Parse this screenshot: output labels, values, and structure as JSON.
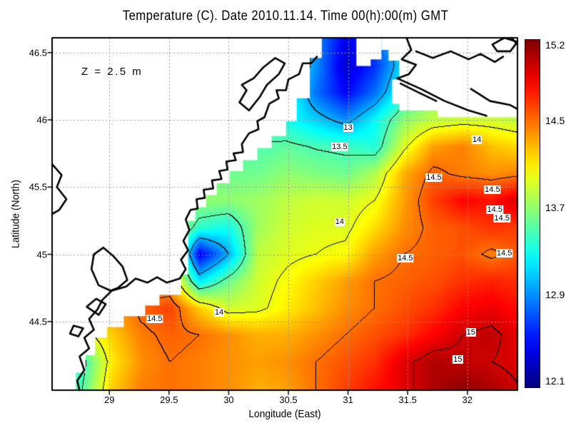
{
  "title": "Temperature (C). Date 2010.11.14. Time 00(h):00(m) GMT",
  "annotation": "Z = 2.5 m",
  "axes": {
    "x": {
      "label": "Longitude (East)",
      "ticks": [
        {
          "value": 29,
          "label": "29"
        },
        {
          "value": 29.5,
          "label": "29.5"
        },
        {
          "value": 30,
          "label": "30"
        },
        {
          "value": 30.5,
          "label": "30.5"
        },
        {
          "value": 31,
          "label": "31"
        },
        {
          "value": 31.5,
          "label": "31.5"
        },
        {
          "value": 32,
          "label": "32"
        }
      ]
    },
    "y": {
      "label": "Latitude (North)",
      "ticks": [
        {
          "value": 46.5,
          "label": "46.5"
        },
        {
          "value": 46,
          "label": "46"
        },
        {
          "value": 45.5,
          "label": "45.5"
        },
        {
          "value": 45,
          "label": "45"
        },
        {
          "value": 44.5,
          "label": "44.5"
        }
      ]
    }
  },
  "colorbar": {
    "range": [
      12.05,
      15.25
    ],
    "ticks": [
      {
        "value": 15.2,
        "label": "15.2"
      },
      {
        "value": 14.5,
        "label": "14.5"
      },
      {
        "value": 13.7,
        "label": "13.7"
      },
      {
        "value": 12.9,
        "label": "12.9"
      },
      {
        "value": 12.1,
        "label": "12.1"
      }
    ]
  },
  "chart_data": {
    "type": "heatmap",
    "title": "Temperature (C). Date 2010.11.14. Time 00(h):00(m) GMT",
    "xlabel": "Longitude (East)",
    "ylabel": "Latitude (North)",
    "lon_range": [
      28.52,
      32.42
    ],
    "lat_range": [
      43.99,
      46.61
    ],
    "value_range": [
      12.05,
      15.25
    ],
    "grid": {
      "lons": [
        28.53,
        28.775,
        29.02,
        29.265,
        29.51,
        29.755,
        30.0,
        30.245,
        30.49,
        30.735,
        30.98,
        31.225,
        31.47,
        31.715,
        31.96,
        32.205,
        32.45
      ],
      "lats": [
        46.6,
        46.4,
        46.2,
        46.0,
        45.8,
        45.6,
        45.4,
        45.2,
        45.0,
        44.8,
        44.6,
        44.4,
        44.2,
        44.0
      ],
      "values": [
        [
          13.5,
          13.5,
          13.5,
          13.5,
          13.5,
          13.5,
          13.5,
          13.5,
          13.4,
          12.9,
          12.4,
          12.7,
          13.2,
          13.8,
          13.8,
          13.8,
          13.8
        ],
        [
          13.5,
          13.5,
          13.5,
          13.5,
          13.5,
          13.5,
          13.5,
          13.5,
          13.4,
          12.9,
          12.3,
          12.6,
          13.2,
          13.8,
          13.8,
          13.8,
          13.8
        ],
        [
          13.5,
          13.5,
          13.5,
          13.5,
          13.5,
          13.5,
          13.5,
          13.5,
          13.35,
          12.8,
          12.45,
          12.8,
          13.35,
          13.7,
          13.8,
          13.8,
          13.8
        ],
        [
          13.5,
          13.5,
          13.5,
          13.5,
          13.5,
          13.5,
          13.5,
          13.45,
          13.3,
          13.1,
          12.9,
          13.25,
          13.7,
          13.85,
          13.9,
          13.9,
          13.85
        ],
        [
          13.5,
          13.5,
          13.5,
          13.5,
          13.5,
          13.5,
          13.5,
          13.5,
          13.55,
          13.48,
          13.45,
          13.35,
          13.95,
          14.35,
          14.45,
          14.25,
          14.15
        ],
        [
          13.6,
          13.6,
          13.6,
          13.6,
          13.6,
          13.6,
          13.6,
          13.6,
          13.7,
          13.65,
          13.6,
          13.8,
          14.3,
          14.55,
          14.45,
          14.4,
          14.45
        ],
        [
          13.7,
          13.7,
          13.7,
          13.7,
          13.7,
          13.7,
          13.7,
          13.75,
          13.85,
          13.9,
          13.9,
          14.0,
          14.35,
          14.65,
          14.85,
          14.8,
          15.0
        ],
        [
          13.8,
          13.8,
          13.8,
          13.8,
          13.9,
          13.4,
          13.3,
          13.75,
          13.9,
          13.95,
          13.95,
          14.15,
          14.4,
          14.55,
          14.6,
          14.7,
          14.65
        ],
        [
          14.0,
          14.0,
          14.0,
          14.1,
          14.2,
          12.4,
          13.0,
          13.85,
          13.95,
          14.0,
          14.05,
          14.35,
          14.5,
          14.55,
          14.6,
          14.45,
          14.6
        ],
        [
          14.1,
          14.1,
          14.2,
          14.3,
          14.3,
          13.2,
          13.6,
          13.9,
          14.05,
          14.2,
          14.35,
          14.5,
          14.55,
          14.6,
          14.7,
          14.75,
          14.7
        ],
        [
          13.9,
          14.1,
          14.35,
          14.55,
          14.65,
          14.2,
          13.9,
          13.95,
          14.1,
          14.25,
          14.4,
          14.5,
          14.6,
          14.7,
          14.85,
          14.9,
          14.8
        ],
        [
          13.6,
          13.9,
          14.2,
          14.45,
          14.55,
          14.5,
          14.4,
          14.3,
          14.3,
          14.4,
          14.5,
          14.6,
          14.7,
          14.85,
          15.0,
          15.05,
          14.9
        ],
        [
          13.3,
          13.4,
          14.1,
          14.4,
          14.5,
          14.45,
          14.4,
          14.35,
          14.4,
          14.5,
          14.6,
          14.7,
          14.95,
          15.1,
          15.05,
          15.0,
          14.95
        ],
        [
          13.4,
          13.5,
          14.2,
          14.45,
          14.5,
          14.45,
          14.4,
          14.3,
          14.35,
          14.5,
          14.65,
          14.8,
          14.95,
          15.1,
          15.2,
          15.1,
          15.0
        ]
      ]
    },
    "contour_levels": [
      13,
      13.5,
      14,
      14.5,
      15
    ],
    "contour_labels": [
      {
        "text": "13",
        "lon": 31.0,
        "lat": 45.94
      },
      {
        "text": "13.5",
        "lon": 30.93,
        "lat": 45.8
      },
      {
        "text": "14",
        "lon": 32.08,
        "lat": 45.85
      },
      {
        "text": "14.5",
        "lon": 31.72,
        "lat": 45.57
      },
      {
        "text": "14.5",
        "lon": 32.21,
        "lat": 45.48
      },
      {
        "text": "14.5",
        "lon": 32.23,
        "lat": 45.33
      },
      {
        "text": "14.5",
        "lon": 32.29,
        "lat": 45.27
      },
      {
        "text": "14",
        "lon": 30.93,
        "lat": 45.24
      },
      {
        "text": "14.5",
        "lon": 31.48,
        "lat": 44.97
      },
      {
        "text": "14.5",
        "lon": 32.31,
        "lat": 45.01
      },
      {
        "text": "14.5",
        "lon": 29.38,
        "lat": 44.52
      },
      {
        "text": "14",
        "lon": 29.92,
        "lat": 44.57
      },
      {
        "text": "15",
        "lon": 32.03,
        "lat": 44.42
      },
      {
        "text": "15",
        "lon": 31.92,
        "lat": 44.22
      }
    ],
    "gridlines": {
      "lons": [
        29,
        29.5,
        30,
        30.5,
        31,
        31.5,
        32
      ],
      "lats": [
        44.5,
        45,
        45.5,
        46,
        46.5
      ]
    },
    "land": [
      [
        [
          28.52,
          46.61
        ],
        [
          30.78,
          46.61
        ],
        [
          30.78,
          46.46
        ],
        [
          30.68,
          46.46
        ],
        [
          30.68,
          46.16
        ],
        [
          30.57,
          46.16
        ],
        [
          30.57,
          45.99
        ],
        [
          30.48,
          45.99
        ],
        [
          30.48,
          45.88
        ],
        [
          30.36,
          45.88
        ],
        [
          30.36,
          45.79
        ],
        [
          30.24,
          45.79
        ],
        [
          30.24,
          45.7
        ],
        [
          30.12,
          45.7
        ],
        [
          30.12,
          45.62
        ],
        [
          30.01,
          45.62
        ],
        [
          30.01,
          45.53
        ],
        [
          29.9,
          45.53
        ],
        [
          29.9,
          45.44
        ],
        [
          29.81,
          45.44
        ],
        [
          29.81,
          45.35
        ],
        [
          29.72,
          45.35
        ],
        [
          29.72,
          45.25
        ],
        [
          29.66,
          45.25
        ],
        [
          29.66,
          44.85
        ],
        [
          29.6,
          44.85
        ],
        [
          29.6,
          44.7
        ],
        [
          29.42,
          44.7
        ],
        [
          29.42,
          44.62
        ],
        [
          29.3,
          44.62
        ],
        [
          29.3,
          44.54
        ],
        [
          29.12,
          44.54
        ],
        [
          29.12,
          44.46
        ],
        [
          28.98,
          44.46
        ],
        [
          28.98,
          44.38
        ],
        [
          28.88,
          44.38
        ],
        [
          28.88,
          44.25
        ],
        [
          28.8,
          44.25
        ],
        [
          28.8,
          44.12
        ],
        [
          28.72,
          44.12
        ],
        [
          28.72,
          43.99
        ],
        [
          28.52,
          43.99
        ]
      ],
      [
        [
          31.07,
          46.61
        ],
        [
          31.28,
          46.61
        ],
        [
          31.28,
          46.45
        ],
        [
          31.19,
          46.45
        ],
        [
          31.19,
          46.4
        ],
        [
          31.07,
          46.4
        ]
      ],
      [
        [
          31.28,
          46.61
        ],
        [
          32.42,
          46.61
        ],
        [
          32.42,
          46.02
        ],
        [
          31.75,
          46.02
        ],
        [
          31.75,
          46.07
        ],
        [
          31.43,
          46.07
        ],
        [
          31.43,
          46.12
        ],
        [
          31.37,
          46.12
        ],
        [
          31.37,
          46.3
        ],
        [
          31.43,
          46.3
        ],
        [
          31.43,
          46.44
        ],
        [
          31.34,
          46.44
        ],
        [
          31.34,
          46.52
        ],
        [
          31.28,
          46.52
        ]
      ]
    ],
    "coastlines": [
      [
        [
          30.74,
          46.47
        ],
        [
          30.69,
          46.42
        ],
        [
          30.62,
          46.42
        ],
        [
          30.59,
          46.34
        ],
        [
          30.5,
          46.3
        ],
        [
          30.48,
          46.22
        ],
        [
          30.4,
          46.22
        ],
        [
          30.42,
          46.16
        ],
        [
          30.34,
          46.12
        ],
        [
          30.3,
          46.02
        ],
        [
          30.24,
          45.99
        ],
        [
          30.25,
          45.93
        ],
        [
          30.17,
          45.9
        ],
        [
          30.11,
          45.82
        ],
        [
          30.12,
          45.76
        ],
        [
          30.04,
          45.75
        ],
        [
          30.06,
          45.7
        ],
        [
          29.98,
          45.69
        ],
        [
          29.99,
          45.63
        ],
        [
          29.92,
          45.62
        ],
        [
          29.94,
          45.56
        ],
        [
          29.86,
          45.55
        ],
        [
          29.87,
          45.49
        ],
        [
          29.79,
          45.48
        ],
        [
          29.8,
          45.42
        ],
        [
          29.73,
          45.41
        ],
        [
          29.74,
          45.34
        ],
        [
          29.68,
          45.33
        ],
        [
          29.64,
          45.26
        ],
        [
          29.67,
          45.18
        ],
        [
          29.62,
          45.1
        ],
        [
          29.66,
          45.03
        ],
        [
          29.6,
          44.96
        ],
        [
          29.64,
          44.89
        ],
        [
          29.59,
          44.82
        ],
        [
          29.48,
          44.79
        ],
        [
          29.4,
          44.83
        ],
        [
          29.32,
          44.79
        ],
        [
          29.22,
          44.82
        ],
        [
          29.14,
          44.76
        ],
        [
          29.02,
          44.73
        ],
        [
          28.94,
          44.66
        ],
        [
          28.9,
          44.59
        ],
        [
          28.83,
          44.52
        ],
        [
          28.87,
          44.44
        ],
        [
          28.79,
          44.38
        ],
        [
          28.83,
          44.3
        ],
        [
          28.75,
          44.24
        ],
        [
          28.79,
          44.14
        ],
        [
          28.73,
          44.06
        ],
        [
          28.75,
          43.99
        ]
      ],
      [
        [
          30.09,
          46.13
        ],
        [
          30.15,
          46.22
        ],
        [
          30.11,
          46.26
        ],
        [
          30.21,
          46.31
        ],
        [
          30.29,
          46.39
        ],
        [
          30.39,
          46.46
        ],
        [
          30.47,
          46.42
        ],
        [
          30.42,
          46.34
        ],
        [
          30.32,
          46.26
        ],
        [
          30.26,
          46.17
        ],
        [
          30.17,
          46.07
        ],
        [
          30.09,
          46.13
        ]
      ],
      [
        [
          29.01,
          44.73
        ],
        [
          28.91,
          44.77
        ],
        [
          28.85,
          44.89
        ],
        [
          28.87,
          45.0
        ],
        [
          28.95,
          45.05
        ],
        [
          29.03,
          44.99
        ],
        [
          29.11,
          44.91
        ],
        [
          29.15,
          44.81
        ],
        [
          29.07,
          44.75
        ],
        [
          29.01,
          44.73
        ]
      ],
      [
        [
          28.81,
          44.61
        ],
        [
          28.89,
          44.67
        ],
        [
          28.97,
          44.63
        ],
        [
          28.91,
          44.55
        ],
        [
          28.81,
          44.61
        ]
      ],
      [
        [
          28.7,
          44.47
        ],
        [
          28.78,
          44.45
        ],
        [
          28.74,
          44.39
        ],
        [
          28.67,
          44.41
        ],
        [
          28.7,
          44.47
        ]
      ],
      [
        [
          28.52,
          45.67
        ],
        [
          28.6,
          45.59
        ],
        [
          28.56,
          45.5
        ],
        [
          28.64,
          45.41
        ],
        [
          28.58,
          45.33
        ],
        [
          28.52,
          45.3
        ]
      ],
      [
        [
          31.49,
          46.61
        ],
        [
          31.53,
          46.52
        ],
        [
          31.45,
          46.45
        ],
        [
          31.57,
          46.41
        ],
        [
          31.51,
          46.34
        ],
        [
          31.42,
          46.31
        ]
      ],
      [
        [
          31.57,
          46.51
        ],
        [
          31.71,
          46.46
        ],
        [
          31.86,
          46.51
        ],
        [
          32.01,
          46.45
        ],
        [
          32.11,
          46.49
        ],
        [
          32.23,
          46.43
        ],
        [
          32.3,
          46.47
        ]
      ],
      [
        [
          31.41,
          46.31
        ],
        [
          31.61,
          46.23
        ],
        [
          31.81,
          46.14
        ],
        [
          32.01,
          46.07
        ],
        [
          32.16,
          46.03
        ]
      ],
      [
        [
          31.44,
          46.27
        ],
        [
          31.6,
          46.2
        ],
        [
          31.74,
          46.14
        ]
      ],
      [
        [
          32.03,
          46.23
        ],
        [
          32.19,
          46.14
        ],
        [
          32.36,
          46.11
        ],
        [
          32.42,
          46.08
        ]
      ],
      [
        [
          32.21,
          46.56
        ],
        [
          32.31,
          46.61
        ],
        [
          32.42,
          46.58
        ],
        [
          32.36,
          46.51
        ],
        [
          32.25,
          46.51
        ],
        [
          32.21,
          46.56
        ]
      ],
      [
        [
          32.37,
          46.61
        ],
        [
          32.42,
          46.56
        ]
      ]
    ]
  }
}
